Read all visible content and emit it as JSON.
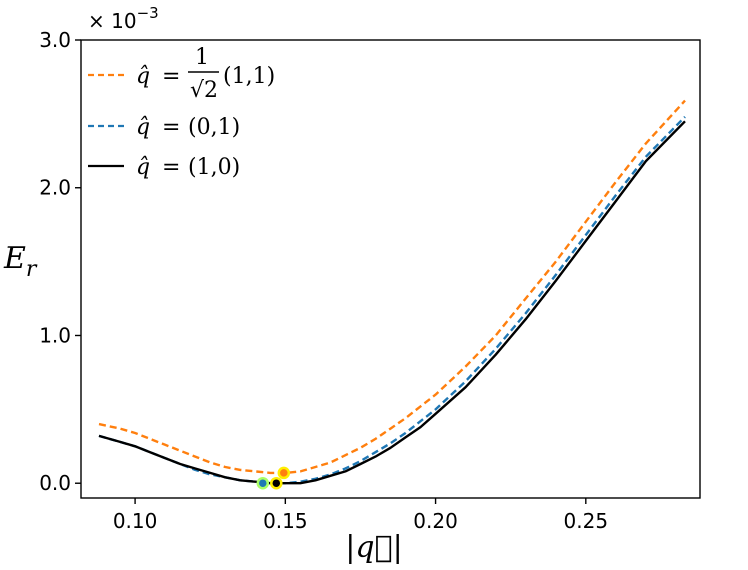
{
  "chart_data": {
    "type": "line",
    "x_label": "|q⃗|",
    "y_label": "E_r",
    "y_multiplier_text": "× 10",
    "y_multiplier_exp": "−3",
    "xlim": [
      0.082,
      0.288
    ],
    "ylim": [
      -0.1,
      3.0
    ],
    "x_ticks": [
      0.1,
      0.15,
      0.2,
      0.25
    ],
    "x_tick_labels": [
      "0.10",
      "0.15",
      "0.20",
      "0.25"
    ],
    "y_ticks": [
      0.0,
      1.0,
      2.0,
      3.0
    ],
    "y_tick_labels": [
      "0.0",
      "1.0",
      "2.0",
      "3.0"
    ],
    "legend_position": "top-left",
    "series": [
      {
        "name": "q̂ = (1/√2)(1,1)",
        "legend": {
          "hat": "q̂",
          "eq": "=",
          "num": "1",
          "den": "√2",
          "tail": "(1,1)"
        },
        "color": "#ff7f0e",
        "style": "dashed",
        "x": [
          0.088,
          0.095,
          0.1,
          0.105,
          0.11,
          0.115,
          0.12,
          0.125,
          0.13,
          0.135,
          0.14,
          0.145,
          0.15,
          0.155,
          0.16,
          0.165,
          0.17,
          0.175,
          0.18,
          0.185,
          0.19,
          0.195,
          0.2,
          0.21,
          0.22,
          0.23,
          0.24,
          0.25,
          0.26,
          0.27,
          0.283
        ],
        "y": [
          0.4,
          0.37,
          0.34,
          0.3,
          0.26,
          0.22,
          0.18,
          0.14,
          0.11,
          0.09,
          0.08,
          0.07,
          0.07,
          0.08,
          0.11,
          0.14,
          0.19,
          0.24,
          0.3,
          0.37,
          0.44,
          0.52,
          0.6,
          0.79,
          1.0,
          1.25,
          1.5,
          1.77,
          2.04,
          2.3,
          2.59
        ]
      },
      {
        "name": "q̂ = (0,1)",
        "legend": {
          "hat": "q̂",
          "eq": "=",
          "tail": "(0,1)"
        },
        "color": "#1f77b4",
        "style": "dashed",
        "x": [
          0.088,
          0.095,
          0.1,
          0.105,
          0.11,
          0.115,
          0.12,
          0.125,
          0.13,
          0.135,
          0.14,
          0.145,
          0.15,
          0.155,
          0.16,
          0.165,
          0.17,
          0.175,
          0.18,
          0.185,
          0.19,
          0.195,
          0.2,
          0.21,
          0.22,
          0.23,
          0.24,
          0.25,
          0.26,
          0.27,
          0.283
        ],
        "y": [
          0.32,
          0.28,
          0.25,
          0.21,
          0.17,
          0.13,
          0.09,
          0.06,
          0.04,
          0.02,
          0.01,
          0.0,
          0.0,
          0.01,
          0.03,
          0.06,
          0.1,
          0.15,
          0.21,
          0.27,
          0.34,
          0.42,
          0.5,
          0.69,
          0.91,
          1.15,
          1.41,
          1.68,
          1.95,
          2.21,
          2.48
        ]
      },
      {
        "name": "q̂ = (1,0)",
        "legend": {
          "hat": "q̂",
          "eq": "=",
          "tail": "(1,0)"
        },
        "color": "#000000",
        "style": "solid",
        "x": [
          0.088,
          0.095,
          0.1,
          0.105,
          0.11,
          0.115,
          0.12,
          0.125,
          0.13,
          0.135,
          0.14,
          0.145,
          0.15,
          0.155,
          0.16,
          0.165,
          0.17,
          0.175,
          0.18,
          0.185,
          0.19,
          0.195,
          0.2,
          0.21,
          0.22,
          0.23,
          0.24,
          0.25,
          0.26,
          0.27,
          0.283
        ],
        "y": [
          0.32,
          0.28,
          0.25,
          0.21,
          0.17,
          0.13,
          0.1,
          0.07,
          0.04,
          0.02,
          0.01,
          0.0,
          0.0,
          0.0,
          0.02,
          0.05,
          0.08,
          0.13,
          0.18,
          0.24,
          0.31,
          0.38,
          0.47,
          0.65,
          0.87,
          1.11,
          1.37,
          1.64,
          1.91,
          2.18,
          2.45
        ]
      }
    ],
    "minimum_markers": [
      {
        "series": "q̂ = (1/√2)(1,1)",
        "x": 0.1495,
        "y": 0.07,
        "fill": "#ff7f0e",
        "edge": "#ffee00"
      },
      {
        "series": "q̂ = (0,1)",
        "x": 0.1425,
        "y": 0.0,
        "fill": "#1f77b4",
        "edge": "#aaff66"
      },
      {
        "series": "q̂ = (1,0)",
        "x": 0.147,
        "y": 0.0,
        "fill": "#000000",
        "edge": "#ffee00"
      }
    ]
  }
}
